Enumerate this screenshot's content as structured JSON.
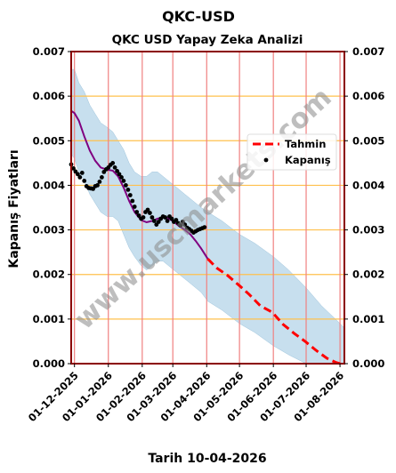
{
  "chart_data": {
    "type": "line",
    "title": "QKC-USD",
    "subtitle": "QKC USD Yapay Zeka Analizi",
    "xlabel": "Tarih 10-04-2026",
    "ylabel": "Kapanış Fiyatları",
    "ylim": [
      0,
      0.007
    ],
    "yticks": [
      "0.000",
      "0.001",
      "0.002",
      "0.003",
      "0.004",
      "0.005",
      "0.006",
      "0.007"
    ],
    "xlim": [
      "2025-11-28",
      "2026-08-05"
    ],
    "xticks": [
      {
        "date": "2025-12-01",
        "label": "01-12-2025"
      },
      {
        "date": "2026-01-01",
        "label": "01-01-2026"
      },
      {
        "date": "2026-02-01",
        "label": "01-02-2026"
      },
      {
        "date": "2026-03-01",
        "label": "01-03-2026"
      },
      {
        "date": "2026-04-01",
        "label": "01-04-2026"
      },
      {
        "date": "2026-05-01",
        "label": "01-05-2026"
      },
      {
        "date": "2026-06-01",
        "label": "01-06-2026"
      },
      {
        "date": "2026-07-01",
        "label": "01-07-2026"
      },
      {
        "date": "2026-08-01",
        "label": "01-08-2026"
      }
    ],
    "grid": true,
    "legend_position": "right",
    "watermark": "www.uscmarkets.com",
    "colors": {
      "frame": "#8b0000",
      "vgrid": "#f08080",
      "hgrid": "#ffc04d",
      "band": "#b4d4e8",
      "trend": "#800080",
      "forecast": "#ff0000",
      "close": "#000000"
    },
    "series": [
      {
        "name": "Kapanış",
        "style": "dots",
        "points": [
          [
            "2025-11-28",
            0.00447
          ],
          [
            "2025-11-30",
            0.00438
          ],
          [
            "2025-12-02",
            0.00431
          ],
          [
            "2025-12-04",
            0.00425
          ],
          [
            "2025-12-06",
            0.00418
          ],
          [
            "2025-12-08",
            0.00428
          ],
          [
            "2025-12-10",
            0.0041
          ],
          [
            "2025-12-12",
            0.00398
          ],
          [
            "2025-12-14",
            0.00394
          ],
          [
            "2025-12-16",
            0.00393
          ],
          [
            "2025-12-18",
            0.00392
          ],
          [
            "2025-12-20",
            0.00398
          ],
          [
            "2025-12-22",
            0.004
          ],
          [
            "2025-12-24",
            0.00408
          ],
          [
            "2025-12-26",
            0.00418
          ],
          [
            "2025-12-28",
            0.0043
          ],
          [
            "2025-12-30",
            0.00436
          ],
          [
            "2026-01-01",
            0.0044
          ],
          [
            "2026-01-03",
            0.00446
          ],
          [
            "2026-01-05",
            0.0045
          ],
          [
            "2026-01-07",
            0.0044
          ],
          [
            "2026-01-09",
            0.00432
          ],
          [
            "2026-01-11",
            0.00425
          ],
          [
            "2026-01-13",
            0.00418
          ],
          [
            "2026-01-15",
            0.0041
          ],
          [
            "2026-01-17",
            0.004
          ],
          [
            "2026-01-19",
            0.0039
          ],
          [
            "2026-01-21",
            0.00378
          ],
          [
            "2026-01-23",
            0.00365
          ],
          [
            "2026-01-25",
            0.00352
          ],
          [
            "2026-01-27",
            0.0034
          ],
          [
            "2026-01-29",
            0.00332
          ],
          [
            "2026-01-31",
            0.00325
          ],
          [
            "2026-02-02",
            0.00328
          ],
          [
            "2026-02-04",
            0.0034
          ],
          [
            "2026-02-06",
            0.00345
          ],
          [
            "2026-02-08",
            0.00338
          ],
          [
            "2026-02-10",
            0.00328
          ],
          [
            "2026-02-12",
            0.0032
          ],
          [
            "2026-02-14",
            0.00312
          ],
          [
            "2026-02-16",
            0.00318
          ],
          [
            "2026-02-18",
            0.00325
          ],
          [
            "2026-02-20",
            0.0033
          ],
          [
            "2026-02-22",
            0.00328
          ],
          [
            "2026-02-24",
            0.0032
          ],
          [
            "2026-02-26",
            0.0033
          ],
          [
            "2026-02-28",
            0.00325
          ],
          [
            "2026-03-02",
            0.00318
          ],
          [
            "2026-03-04",
            0.00322
          ],
          [
            "2026-03-06",
            0.00315
          ],
          [
            "2026-03-08",
            0.0031
          ],
          [
            "2026-03-10",
            0.00318
          ],
          [
            "2026-03-12",
            0.00312
          ],
          [
            "2026-03-14",
            0.00305
          ],
          [
            "2026-03-16",
            0.00302
          ],
          [
            "2026-03-18",
            0.00298
          ],
          [
            "2026-03-20",
            0.00294
          ],
          [
            "2026-03-22",
            0.00297
          ],
          [
            "2026-03-24",
            0.003
          ],
          [
            "2026-03-26",
            0.00302
          ],
          [
            "2026-03-28",
            0.00304
          ],
          [
            "2026-03-30",
            0.00306
          ]
        ]
      },
      {
        "name": "",
        "style": "trend-line",
        "points": [
          [
            "2025-11-28",
            0.00567
          ],
          [
            "2025-12-01",
            0.00562
          ],
          [
            "2025-12-05",
            0.00545
          ],
          [
            "2025-12-10",
            0.0051
          ],
          [
            "2025-12-15",
            0.00478
          ],
          [
            "2025-12-20",
            0.00455
          ],
          [
            "2025-12-25",
            0.0044
          ],
          [
            "2025-12-31",
            0.00435
          ],
          [
            "2026-01-05",
            0.00433
          ],
          [
            "2026-01-10",
            0.0042
          ],
          [
            "2026-01-15",
            0.00395
          ],
          [
            "2026-01-20",
            0.00365
          ],
          [
            "2026-01-25",
            0.0034
          ],
          [
            "2026-01-31",
            0.00322
          ],
          [
            "2026-02-05",
            0.00317
          ],
          [
            "2026-02-10",
            0.0032
          ],
          [
            "2026-02-15",
            0.00325
          ],
          [
            "2026-02-20",
            0.00328
          ],
          [
            "2026-02-25",
            0.00326
          ],
          [
            "2026-03-02",
            0.00318
          ],
          [
            "2026-03-07",
            0.00308
          ],
          [
            "2026-03-12",
            0.003
          ],
          [
            "2026-03-17",
            0.0029
          ],
          [
            "2026-03-22",
            0.00275
          ],
          [
            "2026-03-27",
            0.00258
          ],
          [
            "2026-04-02",
            0.00235
          ]
        ]
      },
      {
        "name": "Tahmin",
        "style": "dashed-line",
        "points": [
          [
            "2026-04-02",
            0.00235
          ],
          [
            "2026-04-10",
            0.00215
          ],
          [
            "2026-04-20",
            0.00198
          ],
          [
            "2026-05-01",
            0.00175
          ],
          [
            "2026-05-10",
            0.00155
          ],
          [
            "2026-05-20",
            0.0013
          ],
          [
            "2026-05-31",
            0.00115
          ],
          [
            "2026-06-10",
            0.00088
          ],
          [
            "2026-06-20",
            0.00068
          ],
          [
            "2026-06-30",
            0.0005
          ],
          [
            "2026-07-10",
            0.0003
          ],
          [
            "2026-07-20",
            0.00012
          ],
          [
            "2026-07-28",
            3e-05
          ],
          [
            "2026-08-01",
            0.0
          ]
        ]
      }
    ],
    "band": {
      "upper": [
        [
          "2025-11-28",
          0.0066
        ],
        [
          "2025-12-01",
          0.0066
        ],
        [
          "2025-12-05",
          0.0063
        ],
        [
          "2025-12-10",
          0.0061
        ],
        [
          "2025-12-15",
          0.0058
        ],
        [
          "2025-12-20",
          0.0056
        ],
        [
          "2025-12-25",
          0.0054
        ],
        [
          "2025-12-31",
          0.0053
        ],
        [
          "2026-01-05",
          0.0052
        ],
        [
          "2026-01-10",
          0.005
        ],
        [
          "2026-01-15",
          0.0048
        ],
        [
          "2026-01-20",
          0.0045
        ],
        [
          "2026-01-25",
          0.0043
        ],
        [
          "2026-01-31",
          0.0042
        ],
        [
          "2026-02-05",
          0.0042
        ],
        [
          "2026-02-10",
          0.0043
        ],
        [
          "2026-02-15",
          0.0043
        ],
        [
          "2026-02-20",
          0.0042
        ],
        [
          "2026-02-25",
          0.0041
        ],
        [
          "2026-03-02",
          0.004
        ],
        [
          "2026-03-07",
          0.0039
        ],
        [
          "2026-03-12",
          0.0038
        ],
        [
          "2026-03-17",
          0.0037
        ],
        [
          "2026-03-22",
          0.0036
        ],
        [
          "2026-03-27",
          0.0035
        ],
        [
          "2026-04-02",
          0.0034
        ],
        [
          "2026-04-15",
          0.0032
        ],
        [
          "2026-05-01",
          0.0029
        ],
        [
          "2026-05-15",
          0.0027
        ],
        [
          "2026-06-01",
          0.0024
        ],
        [
          "2026-06-15",
          0.0021
        ],
        [
          "2026-07-01",
          0.0017
        ],
        [
          "2026-07-15",
          0.0013
        ],
        [
          "2026-08-01",
          0.0009
        ],
        [
          "2026-08-05",
          0.0008
        ]
      ],
      "lower": [
        [
          "2025-11-28",
          0.0047
        ],
        [
          "2025-12-01",
          0.0046
        ],
        [
          "2025-12-05",
          0.0043
        ],
        [
          "2025-12-10",
          0.0041
        ],
        [
          "2025-12-15",
          0.0038
        ],
        [
          "2025-12-20",
          0.0036
        ],
        [
          "2025-12-25",
          0.0034
        ],
        [
          "2025-12-31",
          0.0033
        ],
        [
          "2026-01-05",
          0.0033
        ],
        [
          "2026-01-10",
          0.0032
        ],
        [
          "2026-01-15",
          0.0029
        ],
        [
          "2026-01-20",
          0.0026
        ],
        [
          "2026-01-25",
          0.0024
        ],
        [
          "2026-01-31",
          0.0022
        ],
        [
          "2026-02-05",
          0.0021
        ],
        [
          "2026-02-10",
          0.0022
        ],
        [
          "2026-02-15",
          0.0023
        ],
        [
          "2026-02-20",
          0.0023
        ],
        [
          "2026-02-25",
          0.0022
        ],
        [
          "2026-03-02",
          0.0021
        ],
        [
          "2026-03-07",
          0.002
        ],
        [
          "2026-03-12",
          0.0019
        ],
        [
          "2026-03-17",
          0.0018
        ],
        [
          "2026-03-22",
          0.0017
        ],
        [
          "2026-03-27",
          0.0016
        ],
        [
          "2026-04-02",
          0.0014
        ],
        [
          "2026-04-15",
          0.0012
        ],
        [
          "2026-05-01",
          0.0009
        ],
        [
          "2026-05-15",
          0.0007
        ],
        [
          "2026-06-01",
          0.0004
        ],
        [
          "2026-06-15",
          0.0002
        ],
        [
          "2026-07-01",
          0.0
        ],
        [
          "2026-08-05",
          0.0
        ]
      ]
    },
    "legend": [
      {
        "label": "Tahmin",
        "kind": "dashed-line"
      },
      {
        "label": "Kapanış",
        "kind": "dot"
      }
    ]
  }
}
